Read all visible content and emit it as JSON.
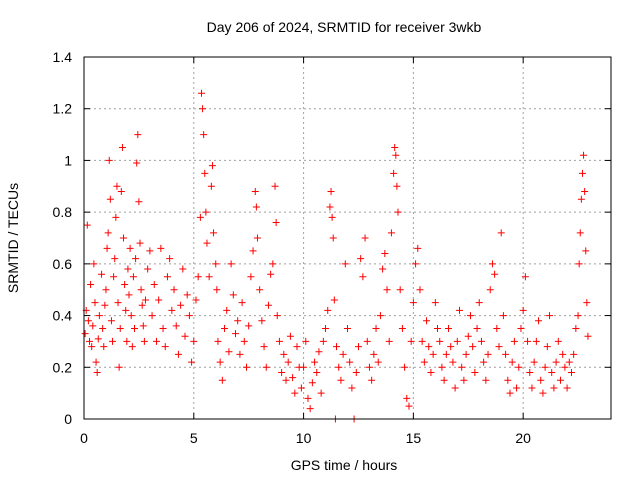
{
  "chart_data": {
    "type": "scatter",
    "title": "Day 206 of 2024, SRMTID for receiver 3wkb",
    "xlabel": "GPS time / hours",
    "ylabel": "SRMTID / TECUs",
    "xlim": [
      0,
      24
    ],
    "ylim": [
      0,
      1.4
    ],
    "xticks": [
      0,
      5,
      10,
      15,
      20
    ],
    "xtick_labels": [
      "0",
      "5",
      "10",
      "15",
      "20"
    ],
    "yticks": [
      0,
      0.2,
      0.4,
      0.6,
      0.8,
      1.0,
      1.2,
      1.4
    ],
    "ytick_labels": [
      "0",
      "0.2",
      "0.4",
      "0.6",
      "0.8",
      "1",
      "1.2",
      "1.4"
    ],
    "grid": true,
    "marker": "plus",
    "color": "#ff0000",
    "series": [
      {
        "name": "SRMTID",
        "points": [
          [
            0.05,
            0.33
          ],
          [
            0.1,
            0.42
          ],
          [
            0.15,
            0.75
          ],
          [
            0.2,
            0.38
          ],
          [
            0.25,
            0.3
          ],
          [
            0.3,
            0.52
          ],
          [
            0.35,
            0.28
          ],
          [
            0.4,
            0.36
          ],
          [
            0.45,
            0.6
          ],
          [
            0.5,
            0.45
          ],
          [
            0.55,
            0.22
          ],
          [
            0.6,
            0.18
          ],
          [
            0.65,
            0.31
          ],
          [
            0.7,
            0.4
          ],
          [
            0.8,
            0.56
          ],
          [
            0.85,
            0.35
          ],
          [
            0.9,
            0.28
          ],
          [
            0.95,
            0.44
          ],
          [
            1.0,
            0.5
          ],
          [
            1.05,
            0.66
          ],
          [
            1.1,
            0.72
          ],
          [
            1.15,
            1.0
          ],
          [
            1.2,
            0.85
          ],
          [
            1.25,
            0.38
          ],
          [
            1.3,
            0.3
          ],
          [
            1.35,
            0.55
          ],
          [
            1.4,
            0.62
          ],
          [
            1.45,
            0.78
          ],
          [
            1.5,
            0.9
          ],
          [
            1.55,
            0.45
          ],
          [
            1.6,
            0.2
          ],
          [
            1.65,
            0.35
          ],
          [
            1.7,
            0.88
          ],
          [
            1.75,
            1.05
          ],
          [
            1.8,
            0.7
          ],
          [
            1.85,
            0.52
          ],
          [
            1.9,
            0.42
          ],
          [
            1.95,
            0.3
          ],
          [
            2.0,
            0.58
          ],
          [
            2.05,
            0.48
          ],
          [
            2.1,
            0.66
          ],
          [
            2.15,
            0.4
          ],
          [
            2.2,
            0.28
          ],
          [
            2.25,
            0.55
          ],
          [
            2.3,
            0.35
          ],
          [
            2.35,
            0.62
          ],
          [
            2.4,
            0.99
          ],
          [
            2.45,
            1.1
          ],
          [
            2.5,
            0.84
          ],
          [
            2.55,
            0.68
          ],
          [
            2.6,
            0.5
          ],
          [
            2.65,
            0.44
          ],
          [
            2.7,
            0.36
          ],
          [
            2.75,
            0.3
          ],
          [
            2.8,
            0.46
          ],
          [
            2.9,
            0.58
          ],
          [
            3.0,
            0.65
          ],
          [
            3.1,
            0.4
          ],
          [
            3.2,
            0.52
          ],
          [
            3.3,
            0.3
          ],
          [
            3.4,
            0.46
          ],
          [
            3.5,
            0.66
          ],
          [
            3.6,
            0.35
          ],
          [
            3.7,
            0.28
          ],
          [
            3.8,
            0.55
          ],
          [
            3.9,
            0.62
          ],
          [
            4.0,
            0.42
          ],
          [
            4.1,
            0.5
          ],
          [
            4.2,
            0.36
          ],
          [
            4.3,
            0.25
          ],
          [
            4.4,
            0.44
          ],
          [
            4.5,
            0.58
          ],
          [
            4.6,
            0.32
          ],
          [
            4.7,
            0.48
          ],
          [
            4.8,
            0.4
          ],
          [
            4.9,
            0.22
          ],
          [
            5.0,
            0.3
          ],
          [
            5.1,
            0.46
          ],
          [
            5.2,
            0.55
          ],
          [
            5.3,
            0.78
          ],
          [
            5.35,
            1.26
          ],
          [
            5.4,
            1.2
          ],
          [
            5.45,
            1.1
          ],
          [
            5.5,
            0.95
          ],
          [
            5.55,
            0.8
          ],
          [
            5.6,
            0.68
          ],
          [
            5.7,
            0.55
          ],
          [
            5.8,
            0.9
          ],
          [
            5.85,
            0.98
          ],
          [
            5.9,
            0.72
          ],
          [
            6.0,
            0.6
          ],
          [
            6.05,
            0.5
          ],
          [
            6.1,
            0.3
          ],
          [
            6.2,
            0.22
          ],
          [
            6.3,
            0.15
          ],
          [
            6.4,
            0.35
          ],
          [
            6.5,
            0.42
          ],
          [
            6.6,
            0.26
          ],
          [
            6.7,
            0.6
          ],
          [
            6.8,
            0.48
          ],
          [
            6.9,
            0.33
          ],
          [
            7.0,
            0.38
          ],
          [
            7.1,
            0.25
          ],
          [
            7.2,
            0.45
          ],
          [
            7.3,
            0.3
          ],
          [
            7.4,
            0.2
          ],
          [
            7.5,
            0.36
          ],
          [
            7.6,
            0.55
          ],
          [
            7.7,
            0.65
          ],
          [
            7.8,
            0.88
          ],
          [
            7.85,
            0.82
          ],
          [
            7.9,
            0.7
          ],
          [
            8.0,
            0.5
          ],
          [
            8.1,
            0.38
          ],
          [
            8.2,
            0.28
          ],
          [
            8.3,
            0.2
          ],
          [
            8.4,
            0.44
          ],
          [
            8.5,
            0.56
          ],
          [
            8.6,
            0.6
          ],
          [
            8.7,
            0.9
          ],
          [
            8.75,
            0.76
          ],
          [
            8.8,
            0.4
          ],
          [
            8.9,
            0.3
          ],
          [
            9.0,
            0.18
          ],
          [
            9.1,
            0.25
          ],
          [
            9.2,
            0.15
          ],
          [
            9.3,
            0.22
          ],
          [
            9.4,
            0.32
          ],
          [
            9.5,
            0.16
          ],
          [
            9.6,
            0.1
          ],
          [
            9.7,
            0.28
          ],
          [
            9.8,
            0.2
          ],
          [
            9.9,
            0.12
          ],
          [
            10.0,
            0.2
          ],
          [
            10.1,
            0.3
          ],
          [
            10.2,
            0.08
          ],
          [
            10.3,
            0.04
          ],
          [
            10.4,
            0.14
          ],
          [
            10.5,
            0.22
          ],
          [
            10.6,
            0.18
          ],
          [
            10.7,
            0.26
          ],
          [
            10.8,
            0.1
          ],
          [
            10.9,
            0.3
          ],
          [
            11.0,
            0.35
          ],
          [
            11.1,
            0.42
          ],
          [
            11.2,
            0.82
          ],
          [
            11.25,
            0.88
          ],
          [
            11.3,
            0.78
          ],
          [
            11.35,
            0.7
          ],
          [
            11.4,
            0.46
          ],
          [
            11.45,
            0.0
          ],
          [
            11.5,
            0.28
          ],
          [
            11.6,
            0.2
          ],
          [
            11.7,
            0.15
          ],
          [
            11.8,
            0.25
          ],
          [
            11.9,
            0.6
          ],
          [
            12.0,
            0.35
          ],
          [
            12.1,
            0.22
          ],
          [
            12.2,
            0.12
          ],
          [
            12.3,
            0.0
          ],
          [
            12.4,
            0.18
          ],
          [
            12.5,
            0.28
          ],
          [
            12.6,
            0.62
          ],
          [
            12.7,
            0.55
          ],
          [
            12.8,
            0.7
          ],
          [
            12.9,
            0.3
          ],
          [
            13.0,
            0.2
          ],
          [
            13.1,
            0.15
          ],
          [
            13.2,
            0.25
          ],
          [
            13.3,
            0.35
          ],
          [
            13.4,
            0.22
          ],
          [
            13.5,
            0.4
          ],
          [
            13.6,
            0.58
          ],
          [
            13.7,
            0.64
          ],
          [
            13.8,
            0.5
          ],
          [
            13.9,
            0.3
          ],
          [
            14.0,
            0.72
          ],
          [
            14.1,
            0.95
          ],
          [
            14.15,
            1.05
          ],
          [
            14.2,
            1.02
          ],
          [
            14.25,
            0.9
          ],
          [
            14.3,
            0.8
          ],
          [
            14.4,
            0.5
          ],
          [
            14.5,
            0.35
          ],
          [
            14.6,
            0.2
          ],
          [
            14.7,
            0.08
          ],
          [
            14.8,
            0.05
          ],
          [
            14.9,
            0.3
          ],
          [
            15.0,
            0.45
          ],
          [
            15.1,
            0.6
          ],
          [
            15.2,
            0.66
          ],
          [
            15.3,
            0.5
          ],
          [
            15.4,
            0.3
          ],
          [
            15.5,
            0.22
          ],
          [
            15.6,
            0.38
          ],
          [
            15.7,
            0.28
          ],
          [
            15.8,
            0.18
          ],
          [
            15.9,
            0.25
          ],
          [
            16.0,
            0.45
          ],
          [
            16.1,
            0.35
          ],
          [
            16.2,
            0.3
          ],
          [
            16.3,
            0.2
          ],
          [
            16.4,
            0.15
          ],
          [
            16.5,
            0.25
          ],
          [
            16.6,
            0.35
          ],
          [
            16.7,
            0.28
          ],
          [
            16.8,
            0.22
          ],
          [
            16.9,
            0.12
          ],
          [
            17.0,
            0.3
          ],
          [
            17.1,
            0.42
          ],
          [
            17.2,
            0.2
          ],
          [
            17.3,
            0.15
          ],
          [
            17.4,
            0.25
          ],
          [
            17.5,
            0.32
          ],
          [
            17.6,
            0.4
          ],
          [
            17.7,
            0.28
          ],
          [
            17.8,
            0.18
          ],
          [
            17.9,
            0.35
          ],
          [
            18.0,
            0.45
          ],
          [
            18.1,
            0.3
          ],
          [
            18.2,
            0.22
          ],
          [
            18.3,
            0.15
          ],
          [
            18.4,
            0.25
          ],
          [
            18.5,
            0.5
          ],
          [
            18.6,
            0.6
          ],
          [
            18.7,
            0.56
          ],
          [
            18.8,
            0.35
          ],
          [
            18.9,
            0.28
          ],
          [
            19.0,
            0.72
          ],
          [
            19.1,
            0.4
          ],
          [
            19.2,
            0.25
          ],
          [
            19.3,
            0.15
          ],
          [
            19.4,
            0.1
          ],
          [
            19.5,
            0.22
          ],
          [
            19.6,
            0.3
          ],
          [
            19.7,
            0.12
          ],
          [
            19.8,
            0.2
          ],
          [
            19.9,
            0.35
          ],
          [
            20.0,
            0.42
          ],
          [
            20.1,
            0.55
          ],
          [
            20.2,
            0.3
          ],
          [
            20.3,
            0.18
          ],
          [
            20.4,
            0.12
          ],
          [
            20.5,
            0.22
          ],
          [
            20.6,
            0.3
          ],
          [
            20.7,
            0.38
          ],
          [
            20.8,
            0.15
          ],
          [
            20.9,
            0.1
          ],
          [
            21.0,
            0.2
          ],
          [
            21.1,
            0.28
          ],
          [
            21.2,
            0.4
          ],
          [
            21.3,
            0.18
          ],
          [
            21.4,
            0.12
          ],
          [
            21.5,
            0.22
          ],
          [
            21.6,
            0.3
          ],
          [
            21.7,
            0.15
          ],
          [
            21.8,
            0.25
          ],
          [
            21.9,
            0.2
          ],
          [
            22.0,
            0.12
          ],
          [
            22.1,
            0.22
          ],
          [
            22.2,
            0.18
          ],
          [
            22.3,
            0.25
          ],
          [
            22.4,
            0.35
          ],
          [
            22.5,
            0.4
          ],
          [
            22.55,
            0.6
          ],
          [
            22.6,
            0.72
          ],
          [
            22.65,
            0.85
          ],
          [
            22.7,
            0.95
          ],
          [
            22.75,
            1.02
          ],
          [
            22.8,
            0.88
          ],
          [
            22.85,
            0.65
          ],
          [
            22.9,
            0.45
          ],
          [
            22.95,
            0.32
          ]
        ]
      }
    ]
  }
}
